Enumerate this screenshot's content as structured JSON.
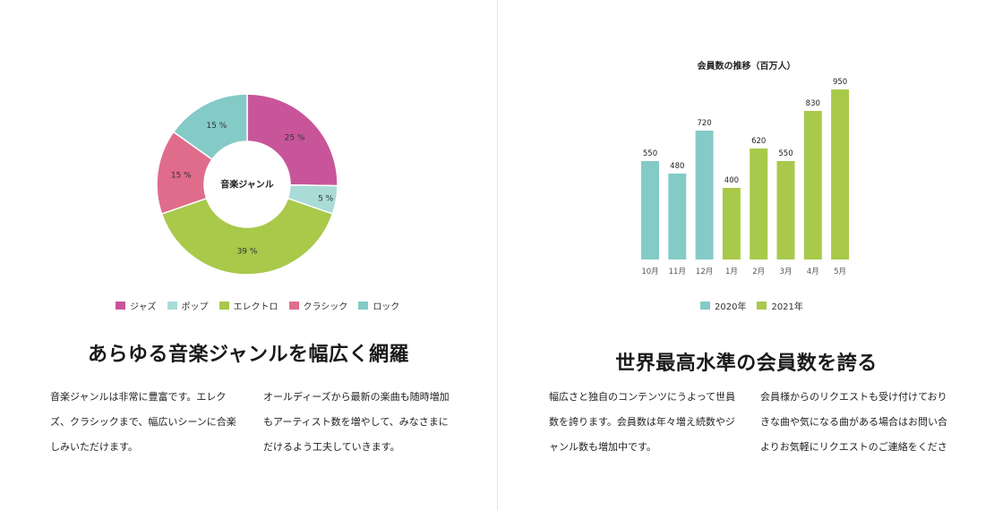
{
  "left": {
    "chart_data": {
      "type": "pie",
      "center_label": "音楽ジャンル",
      "slices": [
        {
          "name": "ジャズ",
          "value": 25,
          "label": "25 %",
          "color": "#c8559a"
        },
        {
          "name": "ポップ",
          "value": 5,
          "label": "5 %",
          "color": "#a9dbd7"
        },
        {
          "name": "エレクトロ",
          "value": 39,
          "label": "39 %",
          "color": "#a8c94a"
        },
        {
          "name": "クラシック",
          "value": 15,
          "label": "15 %",
          "color": "#e06c8c"
        },
        {
          "name": "ロック",
          "value": 15,
          "label": "15 %",
          "color": "#84cac6"
        }
      ],
      "legend_position": "bottom"
    },
    "title": "あらゆる音楽ジャンルを幅広く網羅",
    "paragraphs": [
      "音楽ジャンルは非常に豊富です。エレクズ、クラシックまで、幅広いシーンに合楽しみいただけます。",
      "オールディーズから最新の楽曲も随時増加もアーティスト数を増やして、みなさまにだけるよう工夫していきます。"
    ]
  },
  "right": {
    "chart_data": {
      "type": "bar",
      "title": "会員数の推移（百万人）",
      "categories": [
        "10月",
        "11月",
        "12月",
        "1月",
        "2月",
        "3月",
        "4月",
        "5月"
      ],
      "values": [
        550,
        480,
        720,
        400,
        620,
        550,
        830,
        950
      ],
      "series_index": [
        0,
        0,
        0,
        1,
        1,
        1,
        1,
        1
      ],
      "series": [
        {
          "name": "2020年",
          "color": "#84cac6"
        },
        {
          "name": "2021年",
          "color": "#a8c94a"
        }
      ],
      "ylim": [
        0,
        1000
      ],
      "grid": false,
      "legend_position": "bottom"
    },
    "title": "世界最高水準の会員数を誇る",
    "paragraphs": [
      "幅広さと独自のコンテンツにうよって世員数を誇ります。会員数は年々増え続数やジャンル数も増加中です。",
      "会員様からのリクエストも受け付けておりきな曲や気になる曲がある場合はお問い合よりお気軽にリクエストのご連絡をくださ"
    ]
  }
}
